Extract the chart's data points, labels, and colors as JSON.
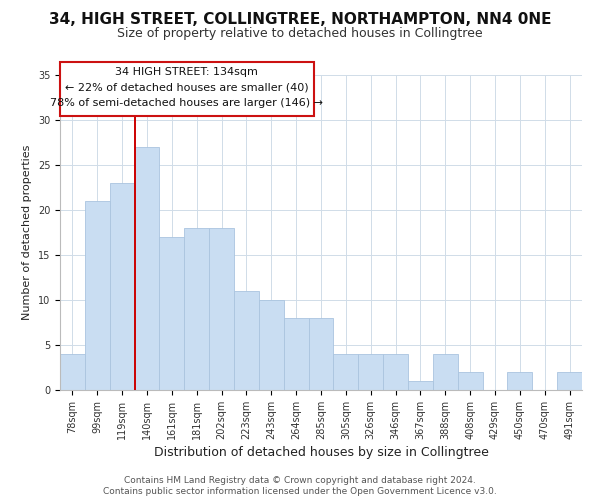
{
  "title": "34, HIGH STREET, COLLINGTREE, NORTHAMPTON, NN4 0NE",
  "subtitle": "Size of property relative to detached houses in Collingtree",
  "xlabel": "Distribution of detached houses by size in Collingtree",
  "ylabel": "Number of detached properties",
  "bar_labels": [
    "78sqm",
    "99sqm",
    "119sqm",
    "140sqm",
    "161sqm",
    "181sqm",
    "202sqm",
    "223sqm",
    "243sqm",
    "264sqm",
    "285sqm",
    "305sqm",
    "326sqm",
    "346sqm",
    "367sqm",
    "388sqm",
    "408sqm",
    "429sqm",
    "450sqm",
    "470sqm",
    "491sqm"
  ],
  "bar_values": [
    4,
    21,
    23,
    27,
    17,
    18,
    18,
    11,
    10,
    8,
    8,
    4,
    4,
    4,
    1,
    4,
    2,
    0,
    2,
    0,
    2
  ],
  "bar_color": "#c9ddf2",
  "bar_edge_color": "#aac4df",
  "vline_color": "#cc0000",
  "vline_index": 3,
  "ylim": [
    0,
    35
  ],
  "yticks": [
    0,
    5,
    10,
    15,
    20,
    25,
    30,
    35
  ],
  "annotation_title": "34 HIGH STREET: 134sqm",
  "annotation_line1": "← 22% of detached houses are smaller (40)",
  "annotation_line2": "78% of semi-detached houses are larger (146) →",
  "footer_line1": "Contains HM Land Registry data © Crown copyright and database right 2024.",
  "footer_line2": "Contains public sector information licensed under the Open Government Licence v3.0.",
  "title_fontsize": 11,
  "subtitle_fontsize": 9,
  "xlabel_fontsize": 9,
  "ylabel_fontsize": 8,
  "tick_fontsize": 7,
  "footer_fontsize": 6.5,
  "annotation_fontsize": 8,
  "background_color": "#ffffff",
  "grid_color": "#d0dce8",
  "ann_box_color": "#cc1111"
}
